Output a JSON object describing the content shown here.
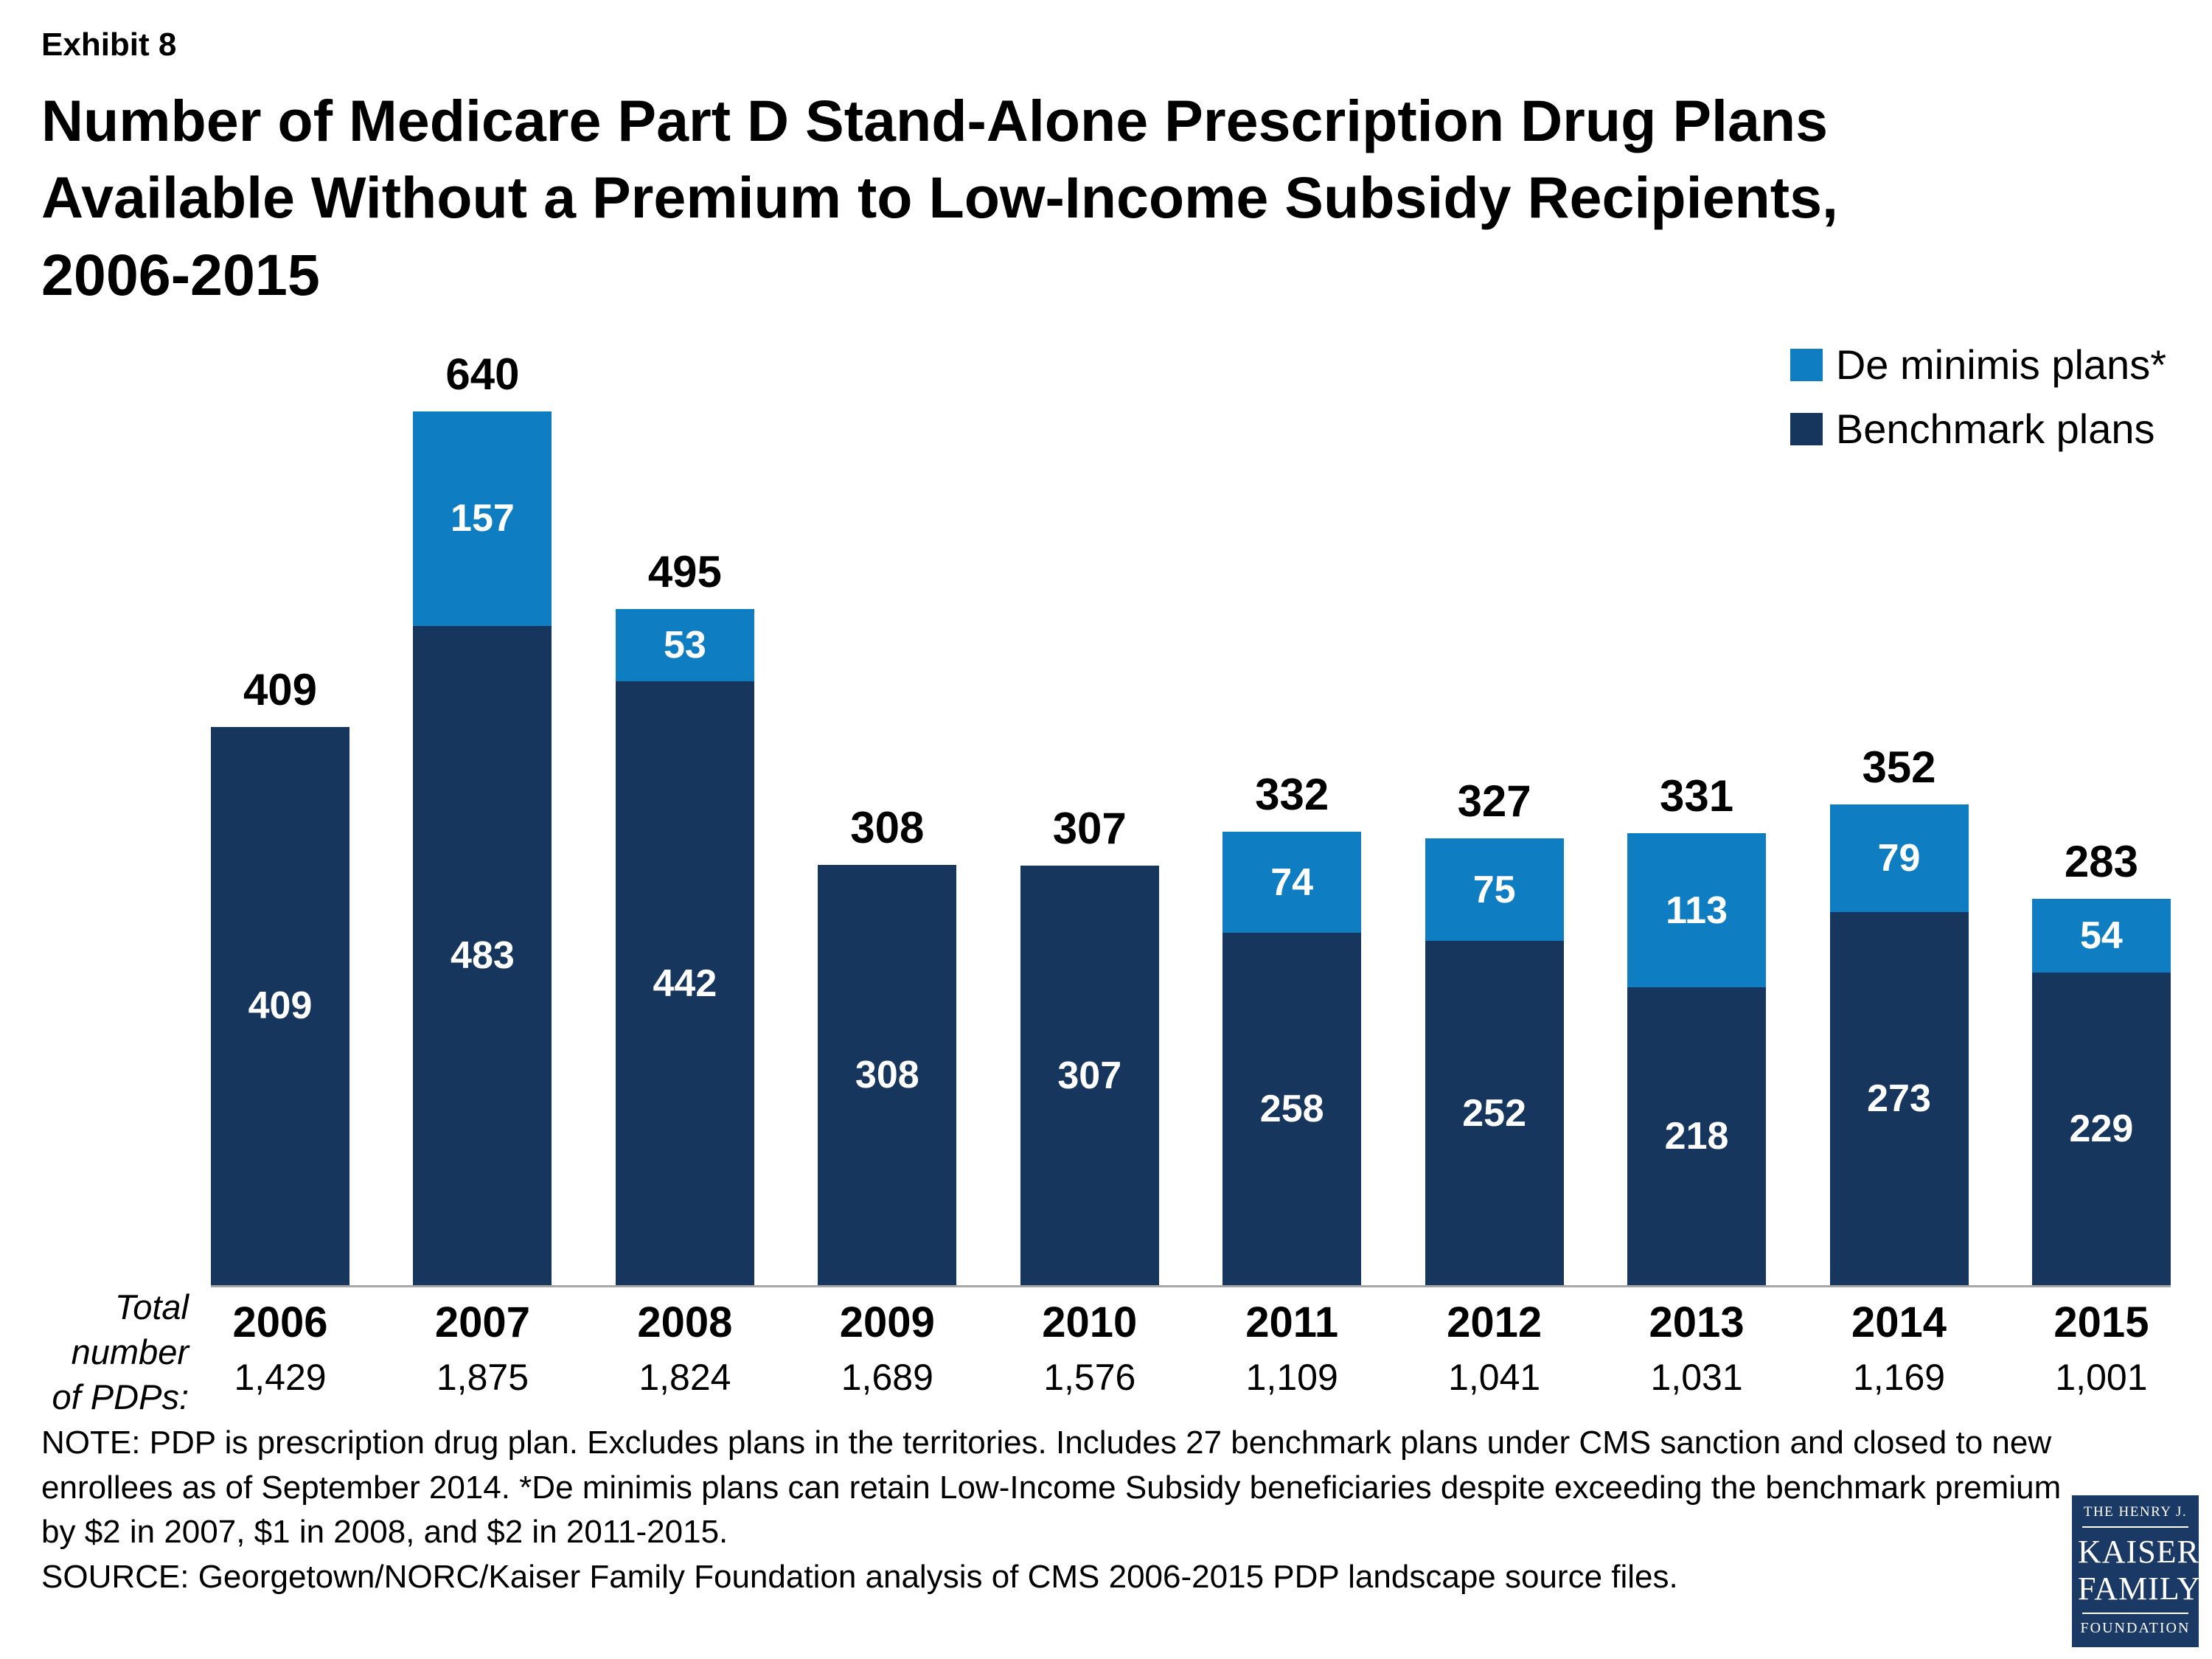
{
  "exhibit": "Exhibit 8",
  "title": "Number of Medicare Part D Stand-Alone Prescription Drug Plans\nAvailable Without a Premium to Low-Income Subsidy Recipients,\n2006-2015",
  "legend": {
    "de_minimis": "De minimis plans*",
    "benchmark": "Benchmark plans"
  },
  "colors": {
    "benchmark": "#17365d",
    "de_minimis": "#0f7dc2",
    "axis": "#a6a6a6"
  },
  "axis_left_label": "Total\nnumber\nof PDPs:",
  "chart_data": {
    "type": "bar",
    "stacked": true,
    "title": "Number of Medicare Part D Stand-Alone Prescription Drug Plans Available Without a Premium to Low-Income Subsidy Recipients, 2006-2015",
    "categories": [
      "2006",
      "2007",
      "2008",
      "2009",
      "2010",
      "2011",
      "2012",
      "2013",
      "2014",
      "2015"
    ],
    "series": [
      {
        "name": "Benchmark plans",
        "values": [
          409,
          483,
          442,
          308,
          307,
          258,
          252,
          218,
          273,
          229
        ]
      },
      {
        "name": "De minimis plans*",
        "values": [
          0,
          157,
          53,
          0,
          0,
          74,
          75,
          113,
          79,
          54
        ]
      }
    ],
    "totals": [
      409,
      640,
      495,
      308,
      307,
      332,
      327,
      331,
      352,
      283
    ],
    "total_pdps": [
      "1,429",
      "1,875",
      "1,824",
      "1,689",
      "1,576",
      "1,109",
      "1,041",
      "1,031",
      "1,169",
      "1,001"
    ],
    "xlabel": "",
    "ylabel": "",
    "ylim": [
      0,
      640
    ],
    "grid": false,
    "legend_position": "top-right"
  },
  "note": "NOTE: PDP is prescription drug plan.  Excludes plans in the territories. Includes 27 benchmark plans under CMS sanction and closed to new enrollees as of September 2014. *De minimis plans can retain Low-Income Subsidy beneficiaries despite exceeding the benchmark premium by $2 in 2007, $1 in 2008, and $2 in 2011-2015.",
  "source": "SOURCE: Georgetown/NORC/Kaiser Family Foundation analysis of CMS 2006-2015 PDP landscape source files.",
  "logo": {
    "line1": "THE HENRY J.",
    "line2": "KAISER",
    "line3": "FAMILY",
    "line4": "FOUNDATION"
  }
}
